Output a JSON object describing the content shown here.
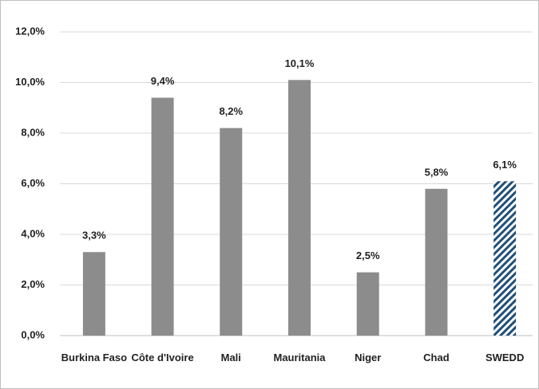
{
  "chart_data": {
    "type": "bar",
    "categories": [
      "Burkina Faso",
      "Côte d'Ivoire",
      "Mali",
      "Mauritania",
      "Niger",
      "Chad",
      "SWEDD"
    ],
    "values": [
      3.3,
      9.4,
      8.2,
      10.1,
      2.5,
      5.8,
      6.1
    ],
    "value_labels": [
      "3,3%",
      "9,4%",
      "8,2%",
      "10,1%",
      "2,5%",
      "5,8%",
      "6,1%"
    ],
    "colors": [
      "#8c8c8c",
      "#8c8c8c",
      "#8c8c8c",
      "#8c8c8c",
      "#8c8c8c",
      "#8c8c8c",
      "#1f4e79"
    ],
    "hatched": [
      false,
      false,
      false,
      false,
      false,
      false,
      true
    ],
    "ylim": [
      0,
      12
    ],
    "yticks": [
      {
        "value": 0,
        "label": "0,0%"
      },
      {
        "value": 2,
        "label": "2,0%"
      },
      {
        "value": 4,
        "label": "4,0%"
      },
      {
        "value": 6,
        "label": "6,0%"
      },
      {
        "value": 8,
        "label": "8,0%"
      },
      {
        "value": 10,
        "label": "10,0%"
      },
      {
        "value": 12,
        "label": "12,0%"
      }
    ],
    "grid": true
  }
}
